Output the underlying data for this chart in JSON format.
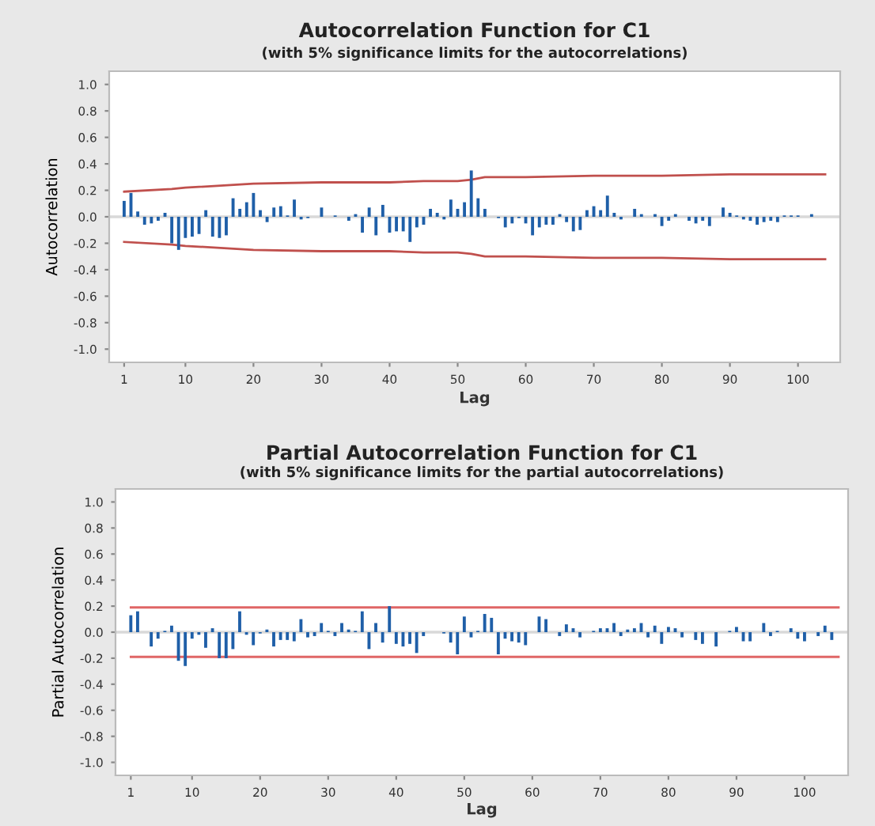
{
  "chart_data": [
    {
      "type": "bar",
      "title": "Autocorrelation Function for C1",
      "subtitle": "(with 5% significance limits for the autocorrelations)",
      "xlabel": "Lag",
      "ylabel": "Autocorrelation",
      "xlim": [
        -1.2,
        106.2
      ],
      "xticks": [
        1,
        10,
        20,
        30,
        40,
        50,
        60,
        70,
        80,
        90,
        100
      ],
      "ylim": [
        -1.1,
        1.1
      ],
      "yticks": [
        {
          "value": -1.0,
          "label": "-1.0"
        },
        {
          "value": -0.8,
          "label": "-0.8"
        },
        {
          "value": -0.6,
          "label": "-0.6"
        },
        {
          "value": -0.4,
          "label": "-0.4"
        },
        {
          "value": -0.2,
          "label": "-0.2"
        },
        {
          "value": 0.0,
          "label": "0.0"
        },
        {
          "value": 0.2,
          "label": "0.2"
        },
        {
          "value": 0.4,
          "label": "0.4"
        },
        {
          "value": 0.6,
          "label": "0.6"
        },
        {
          "value": 0.8,
          "label": "0.8"
        },
        {
          "value": 1.0,
          "label": "1.0"
        }
      ],
      "grid": false,
      "legend": false,
      "ref_lines": [
        {
          "axis": "y",
          "value": 0,
          "color": "#d9d9d9"
        }
      ],
      "series": [
        {
          "color": "#1f5fa8",
          "x": [
            1,
            2,
            3,
            4,
            5,
            6,
            7,
            8,
            9,
            10,
            11,
            12,
            13,
            14,
            15,
            16,
            17,
            18,
            19,
            20,
            21,
            22,
            23,
            24,
            25,
            26,
            27,
            28,
            29,
            30,
            31,
            32,
            33,
            34,
            35,
            36,
            37,
            38,
            39,
            40,
            41,
            42,
            43,
            44,
            45,
            46,
            47,
            48,
            49,
            50,
            51,
            52,
            53,
            54,
            55,
            56,
            57,
            58,
            59,
            60,
            61,
            62,
            63,
            64,
            65,
            66,
            67,
            68,
            69,
            70,
            71,
            72,
            73,
            74,
            75,
            76,
            77,
            78,
            79,
            80,
            81,
            82,
            83,
            84,
            85,
            86,
            87,
            88,
            89,
            90,
            91,
            92,
            93,
            94,
            95,
            96,
            97,
            98,
            99,
            100,
            101,
            102
          ],
          "values": [
            0.12,
            0.18,
            0.04,
            -0.06,
            -0.05,
            -0.03,
            0.03,
            -0.2,
            -0.25,
            -0.16,
            -0.15,
            -0.13,
            0.05,
            -0.15,
            -0.16,
            -0.14,
            0.14,
            0.06,
            0.11,
            0.18,
            0.05,
            -0.04,
            0.07,
            0.08,
            0.01,
            0.13,
            -0.02,
            -0.01,
            0.0,
            0.07,
            0.0,
            0.01,
            0.0,
            -0.03,
            0.02,
            -0.12,
            0.07,
            -0.14,
            0.09,
            -0.12,
            -0.11,
            -0.11,
            -0.19,
            -0.08,
            -0.06,
            0.06,
            0.03,
            -0.02,
            0.13,
            0.06,
            0.11,
            0.35,
            0.14,
            0.06,
            0.0,
            -0.01,
            -0.08,
            -0.05,
            -0.01,
            -0.05,
            -0.14,
            -0.08,
            -0.06,
            -0.06,
            0.02,
            -0.04,
            -0.11,
            -0.1,
            0.05,
            0.08,
            0.05,
            0.16,
            0.03,
            -0.02,
            0.0,
            0.06,
            0.02,
            0.0,
            0.02,
            -0.07,
            -0.03,
            0.02,
            0.0,
            -0.03,
            -0.05,
            -0.03,
            -0.07,
            0.0,
            0.07,
            0.03,
            0.01,
            -0.02,
            -0.03,
            -0.06,
            -0.04,
            -0.03,
            -0.04,
            0.01,
            0.01,
            0.01,
            0.0,
            0.02
          ]
        },
        {
          "type": "line",
          "color": "#c0504d",
          "x": [
            1,
            8,
            10,
            20,
            30,
            40,
            45,
            50,
            52,
            54,
            60,
            70,
            80,
            90,
            100,
            104
          ],
          "values": [
            0.19,
            0.21,
            0.22,
            0.25,
            0.26,
            0.26,
            0.27,
            0.27,
            0.28,
            0.3,
            0.3,
            0.31,
            0.31,
            0.32,
            0.32,
            0.32
          ]
        },
        {
          "type": "line",
          "color": "#c0504d",
          "x": [
            1,
            8,
            10,
            20,
            30,
            40,
            45,
            50,
            52,
            54,
            60,
            70,
            80,
            90,
            100,
            104
          ],
          "values": [
            -0.19,
            -0.21,
            -0.22,
            -0.25,
            -0.26,
            -0.26,
            -0.27,
            -0.27,
            -0.28,
            -0.3,
            -0.3,
            -0.31,
            -0.31,
            -0.32,
            -0.32,
            -0.32
          ]
        }
      ]
    },
    {
      "type": "bar",
      "title": "Partial Autocorrelation Function for C1",
      "subtitle": "(with 5% significance limits for the partial autocorrelations)",
      "xlabel": "Lag",
      "ylabel": "Partial Autocorrelation",
      "xlim": [
        -1.25,
        106.4
      ],
      "xticks": [
        1,
        10,
        20,
        30,
        40,
        50,
        60,
        70,
        80,
        90,
        100
      ],
      "ylim": [
        -1.1,
        1.1
      ],
      "yticks": [
        {
          "value": -1.0,
          "label": "-1.0"
        },
        {
          "value": -0.8,
          "label": "-0.8"
        },
        {
          "value": -0.6,
          "label": "-0.6"
        },
        {
          "value": -0.4,
          "label": "-0.4"
        },
        {
          "value": -0.2,
          "label": "-0.2"
        },
        {
          "value": 0.0,
          "label": "0.0"
        },
        {
          "value": 0.2,
          "label": "0.2"
        },
        {
          "value": 0.4,
          "label": "0.4"
        },
        {
          "value": 0.6,
          "label": "0.6"
        },
        {
          "value": 0.8,
          "label": "0.8"
        },
        {
          "value": 1.0,
          "label": "1.0"
        }
      ],
      "grid": false,
      "legend": false,
      "ref_lines": [
        {
          "axis": "y",
          "value": 0,
          "color": "#d9d9d9"
        }
      ],
      "series": [
        {
          "color": "#1f5fa8",
          "x": [
            1,
            2,
            3,
            4,
            5,
            6,
            7,
            8,
            9,
            10,
            11,
            12,
            13,
            14,
            15,
            16,
            17,
            18,
            19,
            20,
            21,
            22,
            23,
            24,
            25,
            26,
            27,
            28,
            29,
            30,
            31,
            32,
            33,
            34,
            35,
            36,
            37,
            38,
            39,
            40,
            41,
            42,
            43,
            44,
            45,
            46,
            47,
            48,
            49,
            50,
            51,
            52,
            53,
            54,
            55,
            56,
            57,
            58,
            59,
            60,
            61,
            62,
            63,
            64,
            65,
            66,
            67,
            68,
            69,
            70,
            71,
            72,
            73,
            74,
            75,
            76,
            77,
            78,
            79,
            80,
            81,
            82,
            83,
            84,
            85,
            86,
            87,
            88,
            89,
            90,
            91,
            92,
            93,
            94,
            95,
            96,
            97,
            98,
            99,
            100,
            101,
            102,
            103,
            104
          ],
          "values": [
            0.13,
            0.16,
            0.0,
            -0.11,
            -0.05,
            0.01,
            0.05,
            -0.22,
            -0.26,
            -0.05,
            -0.02,
            -0.12,
            0.03,
            -0.2,
            -0.2,
            -0.13,
            0.16,
            -0.02,
            -0.1,
            -0.01,
            0.02,
            -0.11,
            -0.06,
            -0.06,
            -0.07,
            0.1,
            -0.04,
            -0.03,
            0.07,
            0.01,
            -0.03,
            0.07,
            0.02,
            0.01,
            0.16,
            -0.13,
            0.07,
            -0.08,
            0.2,
            -0.09,
            -0.11,
            -0.09,
            -0.16,
            -0.03,
            0.0,
            0.0,
            -0.01,
            -0.08,
            -0.17,
            0.12,
            -0.04,
            0.01,
            0.14,
            0.11,
            -0.17,
            -0.05,
            -0.07,
            -0.08,
            -0.1,
            0.0,
            0.12,
            0.1,
            0.0,
            -0.03,
            0.06,
            0.03,
            -0.04,
            0.0,
            0.01,
            0.03,
            0.03,
            0.07,
            -0.03,
            0.02,
            0.03,
            0.07,
            -0.04,
            0.05,
            -0.09,
            0.04,
            0.03,
            -0.04,
            0.0,
            -0.06,
            -0.09,
            0.0,
            -0.11,
            0.0,
            0.01,
            0.04,
            -0.07,
            -0.07,
            0.0,
            0.07,
            -0.03,
            0.01,
            0.0,
            0.03,
            -0.05,
            -0.07,
            0.0,
            -0.03,
            0.05,
            -0.06
          ]
        },
        {
          "type": "line",
          "color": "#e06666",
          "x": [
            1,
            105
          ],
          "values": [
            0.19,
            0.19
          ]
        },
        {
          "type": "line",
          "color": "#e06666",
          "x": [
            1,
            105
          ],
          "values": [
            -0.19,
            -0.19
          ]
        }
      ]
    }
  ]
}
